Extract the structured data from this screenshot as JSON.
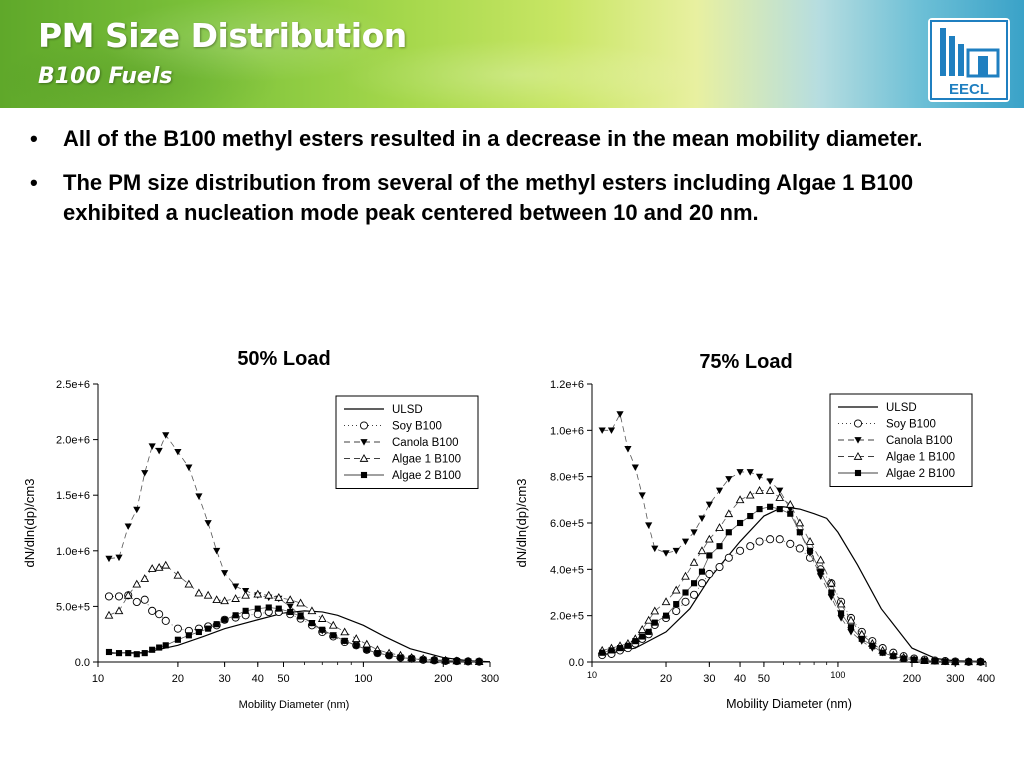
{
  "slide": {
    "title": "PM Size Distribution",
    "subtitle": "B100 Fuels",
    "logo_text": "EECL",
    "bullets": [
      "All of the B100 methyl esters resulted in a decrease in the mean mobility diameter.",
      "The PM size distribution from several of the methyl esters including Algae 1 B100 exhibited a nucleation mode peak centered between 10 and 20 nm."
    ]
  },
  "chart_data": [
    {
      "type": "scatter",
      "title": "50% Load",
      "xlabel": "Mobility Diameter (nm)",
      "ylabel": "dN/dln(dp)/cm3",
      "xscale": "log",
      "xlim": [
        10,
        300
      ],
      "ylim": [
        0,
        2500000
      ],
      "xticks": [
        10,
        20,
        30,
        40,
        50,
        100,
        200,
        300
      ],
      "xtick_labels": [
        "10",
        "20",
        "30",
        "40",
        "50",
        "100",
        "200",
        "300"
      ],
      "yticks": [
        0,
        500000,
        1000000,
        1500000,
        2000000,
        2500000
      ],
      "ytick_labels": [
        "0.0",
        "5.0e+5",
        "1.0e+6",
        "1.5e+6",
        "2.0e+6",
        "2.5e+6"
      ],
      "legend": "top-right",
      "series": [
        {
          "name": "ULSD",
          "style": "line",
          "x": [
            11,
            15,
            20,
            25,
            30,
            40,
            50,
            60,
            70,
            80,
            100,
            120,
            150,
            200,
            250,
            300
          ],
          "y": [
            80000,
            85000,
            150000,
            230000,
            300000,
            380000,
            440000,
            460000,
            450000,
            420000,
            330000,
            230000,
            120000,
            40000,
            10000,
            3000
          ]
        },
        {
          "name": "Soy B100",
          "style": "open-circle",
          "x": [
            11,
            12,
            13,
            14,
            15,
            16,
            17,
            18,
            20,
            22,
            24,
            26,
            28,
            30,
            33,
            36,
            40,
            44,
            48,
            53,
            58,
            64,
            70,
            77,
            85,
            94,
            103,
            113,
            125,
            138,
            152,
            168,
            185,
            204,
            225,
            248,
            273
          ],
          "y": [
            590000,
            590000,
            600000,
            540000,
            560000,
            460000,
            430000,
            370000,
            300000,
            280000,
            300000,
            320000,
            330000,
            380000,
            400000,
            420000,
            430000,
            450000,
            450000,
            430000,
            390000,
            330000,
            270000,
            230000,
            180000,
            150000,
            110000,
            80000,
            60000,
            40000,
            30000,
            20000,
            15000,
            10000,
            8000,
            5000,
            3000
          ]
        },
        {
          "name": "Canola B100",
          "style": "dashed-filled-triangle-down",
          "x": [
            11,
            12,
            13,
            14,
            15,
            16,
            17,
            18,
            20,
            22,
            24,
            26,
            28,
            30,
            33,
            36,
            40,
            44,
            48,
            53,
            58,
            64,
            70,
            77,
            85,
            94,
            103,
            113,
            125,
            138,
            152,
            168,
            185,
            204,
            225,
            248,
            273
          ],
          "y": [
            930000,
            940000,
            1220000,
            1370000,
            1700000,
            1940000,
            1900000,
            2040000,
            1890000,
            1750000,
            1490000,
            1250000,
            1000000,
            800000,
            680000,
            640000,
            600000,
            580000,
            570000,
            500000,
            420000,
            350000,
            280000,
            240000,
            190000,
            150000,
            110000,
            80000,
            60000,
            40000,
            30000,
            20000,
            15000,
            10000,
            8000,
            5000,
            3000
          ]
        },
        {
          "name": "Algae 1 B100",
          "style": "dashed-open-triangle-up",
          "x": [
            11,
            12,
            13,
            14,
            15,
            16,
            17,
            18,
            20,
            22,
            24,
            26,
            28,
            30,
            33,
            36,
            40,
            44,
            48,
            53,
            58,
            64,
            70,
            77,
            85,
            94,
            103,
            113,
            125,
            138,
            152,
            168,
            185,
            204,
            225,
            248,
            273
          ],
          "y": [
            420000,
            460000,
            600000,
            700000,
            750000,
            840000,
            850000,
            870000,
            780000,
            700000,
            620000,
            600000,
            560000,
            550000,
            570000,
            600000,
            610000,
            600000,
            580000,
            560000,
            530000,
            460000,
            390000,
            330000,
            270000,
            210000,
            160000,
            110000,
            80000,
            60000,
            40000,
            30000,
            20000,
            15000,
            10000,
            6000,
            3000
          ]
        },
        {
          "name": "Algae 2 B100",
          "style": "filled-square",
          "x": [
            11,
            12,
            13,
            14,
            15,
            16,
            17,
            18,
            20,
            22,
            24,
            26,
            28,
            30,
            33,
            36,
            40,
            44,
            48,
            53,
            58,
            64,
            70,
            77,
            85,
            94,
            103,
            113,
            125,
            138,
            152,
            168,
            185,
            204,
            225,
            248,
            273
          ],
          "y": [
            90000,
            80000,
            80000,
            70000,
            80000,
            110000,
            130000,
            150000,
            200000,
            240000,
            270000,
            300000,
            340000,
            380000,
            420000,
            460000,
            480000,
            490000,
            480000,
            450000,
            410000,
            350000,
            290000,
            240000,
            190000,
            150000,
            110000,
            80000,
            60000,
            40000,
            30000,
            20000,
            15000,
            10000,
            8000,
            5000,
            3000
          ]
        }
      ]
    },
    {
      "type": "scatter",
      "title": "75% Load",
      "xlabel": "Mobility Diameter (nm)",
      "ylabel": "dN/dln(dp)/cm3",
      "xscale": "log",
      "xlim": [
        10,
        400
      ],
      "ylim": [
        0,
        1200000
      ],
      "xticks": [
        10,
        20,
        30,
        40,
        50,
        100,
        200,
        300,
        400
      ],
      "xtick_labels": [
        "10",
        "20",
        "30",
        "40",
        "50",
        "100",
        "200",
        "300",
        "400"
      ],
      "yticks": [
        0,
        200000,
        400000,
        600000,
        800000,
        1000000,
        1200000
      ],
      "ytick_labels": [
        "0.0",
        "2.0e+5",
        "4.0e+5",
        "6.0e+5",
        "8.0e+5",
        "1.0e+6",
        "1.2e+6"
      ],
      "legend": "top-right",
      "series": [
        {
          "name": "ULSD",
          "style": "line",
          "x": [
            11,
            15,
            20,
            25,
            30,
            40,
            50,
            60,
            70,
            80,
            90,
            100,
            120,
            150,
            200,
            250,
            300,
            400
          ],
          "y": [
            30000,
            60000,
            130000,
            230000,
            360000,
            520000,
            630000,
            670000,
            660000,
            640000,
            620000,
            560000,
            420000,
            230000,
            60000,
            15000,
            5000,
            2000
          ]
        },
        {
          "name": "Soy B100",
          "style": "open-circle",
          "x": [
            11,
            12,
            13,
            14,
            15,
            16,
            17,
            18,
            20,
            22,
            24,
            26,
            28,
            30,
            33,
            36,
            40,
            44,
            48,
            53,
            58,
            64,
            70,
            77,
            85,
            94,
            103,
            113,
            125,
            138,
            152,
            168,
            185,
            204,
            225,
            248,
            273,
            300,
            340,
            380
          ],
          "y": [
            30000,
            35000,
            50000,
            60000,
            80000,
            100000,
            120000,
            160000,
            190000,
            220000,
            260000,
            290000,
            340000,
            380000,
            410000,
            450000,
            480000,
            500000,
            520000,
            530000,
            530000,
            510000,
            490000,
            450000,
            400000,
            340000,
            260000,
            190000,
            130000,
            90000,
            60000,
            40000,
            25000,
            15000,
            10000,
            6000,
            4000,
            2000,
            1000,
            1000
          ]
        },
        {
          "name": "Canola B100",
          "style": "dashed-filled-triangle-down",
          "x": [
            11,
            12,
            13,
            14,
            15,
            16,
            17,
            18,
            20,
            22,
            24,
            26,
            28,
            30,
            33,
            36,
            40,
            44,
            48,
            53,
            58,
            64,
            70,
            77,
            85,
            94,
            103,
            113,
            125,
            138,
            152,
            168,
            185,
            204,
            225,
            248,
            273,
            300,
            340,
            380
          ],
          "y": [
            1000000,
            1000000,
            1070000,
            920000,
            840000,
            720000,
            590000,
            490000,
            470000,
            480000,
            520000,
            560000,
            620000,
            680000,
            740000,
            790000,
            820000,
            820000,
            800000,
            780000,
            740000,
            660000,
            560000,
            470000,
            370000,
            280000,
            190000,
            130000,
            90000,
            60000,
            40000,
            25000,
            15000,
            10000,
            6000,
            4000,
            2000,
            1000,
            1000,
            1000
          ]
        },
        {
          "name": "Algae 1 B100",
          "style": "dashed-open-triangle-up",
          "x": [
            11,
            12,
            13,
            14,
            15,
            16,
            17,
            18,
            20,
            22,
            24,
            26,
            28,
            30,
            33,
            36,
            40,
            44,
            48,
            53,
            58,
            64,
            70,
            77,
            85,
            94,
            103,
            113,
            125,
            138,
            152,
            168,
            185,
            204,
            225,
            248,
            273,
            300,
            340,
            380
          ],
          "y": [
            50000,
            60000,
            70000,
            80000,
            100000,
            140000,
            180000,
            220000,
            260000,
            310000,
            370000,
            430000,
            480000,
            530000,
            580000,
            640000,
            700000,
            720000,
            740000,
            740000,
            710000,
            680000,
            600000,
            520000,
            440000,
            340000,
            250000,
            180000,
            120000,
            80000,
            50000,
            30000,
            20000,
            10000,
            6000,
            4000,
            2000,
            1000,
            1000,
            1000
          ]
        },
        {
          "name": "Algae 2 B100",
          "style": "filled-square",
          "x": [
            11,
            12,
            13,
            14,
            15,
            16,
            17,
            18,
            20,
            22,
            24,
            26,
            28,
            30,
            33,
            36,
            40,
            44,
            48,
            53,
            58,
            64,
            70,
            77,
            85,
            94,
            103,
            113,
            125,
            138,
            152,
            168,
            185,
            204,
            225,
            248,
            273,
            300,
            340,
            380
          ],
          "y": [
            40000,
            50000,
            60000,
            70000,
            90000,
            110000,
            130000,
            170000,
            200000,
            250000,
            300000,
            340000,
            390000,
            460000,
            500000,
            560000,
            600000,
            630000,
            660000,
            670000,
            660000,
            640000,
            560000,
            480000,
            390000,
            300000,
            210000,
            150000,
            100000,
            70000,
            40000,
            25000,
            15000,
            10000,
            6000,
            4000,
            2000,
            1000,
            1000,
            1000
          ]
        }
      ]
    }
  ],
  "colors": {
    "banner_green": "#6bb52e",
    "banner_blue": "#3aa2c8",
    "title_text": "#ffffff",
    "logo_blue": "#1f7fc0"
  }
}
